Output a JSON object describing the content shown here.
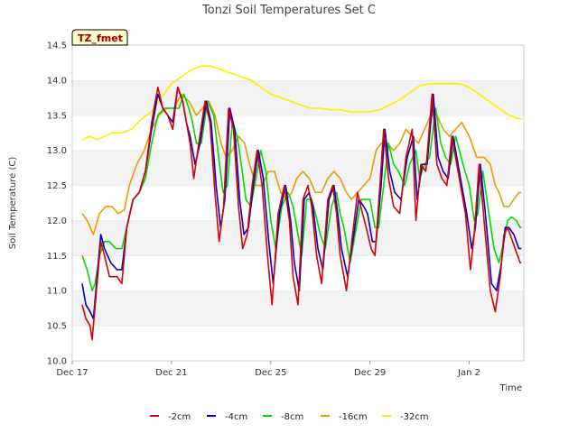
{
  "chart_data": {
    "type": "line",
    "title": "Tonzi Soil Temperatures Set C",
    "xlabel": "Time",
    "ylabel": "Soil Temperature (C)",
    "badge": "TZ_fmet",
    "ylim": [
      10.0,
      14.5
    ],
    "yticks": [
      10.0,
      10.5,
      11.0,
      11.5,
      12.0,
      12.5,
      13.0,
      13.5,
      14.0,
      14.5
    ],
    "xlim": [
      0,
      18.2
    ],
    "xticks": [
      {
        "value": 0,
        "label": "Dec 17"
      },
      {
        "value": 4,
        "label": "Dec 21"
      },
      {
        "value": 8,
        "label": "Dec 25"
      },
      {
        "value": 12,
        "label": "Dec 29"
      },
      {
        "value": 16,
        "label": "Jan 2"
      }
    ],
    "grid": true,
    "legend_position": "bottom",
    "series": [
      {
        "name": "-2cm",
        "color": "#dd0000",
        "x": [
          0.4,
          0.55,
          0.72,
          0.8,
          0.95,
          1.15,
          1.3,
          1.5,
          1.8,
          2.0,
          2.2,
          2.45,
          2.7,
          2.95,
          3.2,
          3.45,
          3.65,
          3.85,
          4.05,
          4.25,
          4.45,
          4.6,
          4.75,
          4.9,
          5.1,
          5.35,
          5.55,
          5.75,
          5.92,
          6.1,
          6.3,
          6.5,
          6.7,
          6.87,
          7.05,
          7.25,
          7.45,
          7.65,
          7.87,
          8.05,
          8.3,
          8.55,
          8.75,
          8.9,
          9.1,
          9.3,
          9.5,
          9.65,
          9.85,
          10.05,
          10.3,
          10.5,
          10.65,
          10.8,
          11.05,
          11.3,
          11.5,
          11.7,
          11.85,
          12.05,
          12.2,
          12.4,
          12.55,
          12.75,
          12.95,
          13.2,
          13.45,
          13.7,
          13.85,
          14.05,
          14.25,
          14.5,
          14.7,
          14.9,
          15.1,
          15.3,
          15.6,
          15.85,
          16.05,
          16.2,
          16.4,
          16.6,
          16.85,
          17.05,
          17.25,
          17.4,
          17.55,
          17.75,
          17.95,
          18.05,
          18.1
        ],
        "y": [
          10.8,
          10.6,
          10.5,
          10.3,
          10.9,
          11.7,
          11.5,
          11.2,
          11.2,
          11.1,
          11.9,
          12.3,
          12.4,
          12.7,
          13.4,
          13.9,
          13.6,
          13.5,
          13.3,
          13.9,
          13.7,
          13.4,
          13.1,
          12.6,
          13.1,
          13.7,
          13.4,
          12.4,
          11.7,
          12.2,
          13.6,
          13.3,
          12.2,
          11.6,
          11.8,
          12.5,
          13.0,
          12.5,
          11.5,
          10.8,
          12.1,
          12.5,
          12.0,
          11.2,
          10.8,
          12.3,
          12.5,
          12.2,
          11.5,
          11.1,
          12.3,
          12.5,
          12.1,
          11.5,
          11.0,
          11.8,
          12.4,
          12.1,
          11.9,
          11.6,
          11.5,
          12.5,
          13.3,
          12.6,
          12.2,
          12.1,
          12.9,
          13.3,
          12.0,
          12.8,
          12.7,
          13.8,
          12.8,
          12.6,
          12.5,
          13.2,
          12.6,
          12.1,
          11.3,
          11.8,
          12.8,
          12.0,
          11.0,
          10.7,
          11.2,
          11.8,
          11.9,
          11.7,
          11.5,
          11.4,
          11.4
        ]
      },
      {
        "name": "-4cm",
        "color": "#0000cc",
        "x": [
          0.4,
          0.55,
          0.72,
          0.85,
          1.0,
          1.15,
          1.3,
          1.55,
          1.8,
          2.0,
          2.2,
          2.45,
          2.7,
          2.95,
          3.2,
          3.45,
          3.65,
          3.85,
          4.05,
          4.25,
          4.45,
          4.6,
          4.75,
          4.95,
          5.15,
          5.4,
          5.6,
          5.8,
          5.98,
          6.15,
          6.35,
          6.55,
          6.75,
          6.92,
          7.1,
          7.3,
          7.5,
          7.7,
          7.92,
          8.1,
          8.35,
          8.6,
          8.8,
          8.95,
          9.15,
          9.35,
          9.55,
          9.7,
          9.9,
          10.1,
          10.35,
          10.55,
          10.7,
          10.85,
          11.1,
          11.35,
          11.55,
          11.75,
          11.9,
          12.1,
          12.25,
          12.45,
          12.6,
          12.8,
          13.0,
          13.25,
          13.5,
          13.75,
          13.9,
          14.1,
          14.3,
          14.55,
          14.75,
          14.95,
          15.15,
          15.35,
          15.65,
          15.9,
          16.1,
          16.25,
          16.45,
          16.65,
          16.9,
          17.1,
          17.3,
          17.45,
          17.6,
          17.8,
          18.0,
          18.1
        ],
        "y": [
          11.1,
          10.8,
          10.7,
          10.6,
          11.2,
          11.8,
          11.6,
          11.4,
          11.3,
          11.3,
          11.9,
          12.3,
          12.4,
          12.7,
          13.3,
          13.8,
          13.6,
          13.5,
          13.4,
          13.9,
          13.7,
          13.4,
          13.2,
          12.8,
          13.1,
          13.7,
          13.4,
          12.5,
          11.9,
          12.3,
          13.6,
          13.3,
          12.3,
          11.8,
          11.9,
          12.5,
          13.0,
          12.6,
          11.7,
          11.1,
          12.1,
          12.5,
          12.0,
          11.4,
          11.0,
          12.3,
          12.4,
          12.2,
          11.6,
          11.3,
          12.3,
          12.5,
          12.1,
          11.6,
          11.2,
          11.8,
          12.3,
          12.2,
          12.1,
          11.7,
          11.7,
          12.5,
          13.3,
          12.7,
          12.4,
          12.3,
          12.9,
          13.2,
          12.3,
          12.8,
          12.8,
          13.8,
          12.9,
          12.7,
          12.6,
          13.2,
          12.6,
          12.1,
          11.6,
          11.9,
          12.8,
          12.1,
          11.1,
          11.0,
          11.4,
          11.9,
          11.9,
          11.8,
          11.6,
          11.6
        ]
      },
      {
        "name": "-8cm",
        "color": "#00dd00",
        "x": [
          0.4,
          0.6,
          0.8,
          0.92,
          1.1,
          1.3,
          1.5,
          1.75,
          2.0,
          2.2,
          2.45,
          2.7,
          2.95,
          3.2,
          3.45,
          3.7,
          3.9,
          4.1,
          4.3,
          4.5,
          4.7,
          4.85,
          5.0,
          5.2,
          5.45,
          5.7,
          5.9,
          6.08,
          6.25,
          6.45,
          6.65,
          6.85,
          7.0,
          7.2,
          7.4,
          7.6,
          7.8,
          8.0,
          8.2,
          8.45,
          8.7,
          8.9,
          9.05,
          9.25,
          9.45,
          9.65,
          9.8,
          10.0,
          10.2,
          10.45,
          10.65,
          10.8,
          10.95,
          11.2,
          11.45,
          11.65,
          11.85,
          12.0,
          12.2,
          12.35,
          12.55,
          12.75,
          12.95,
          13.15,
          13.4,
          13.6,
          13.85,
          14.0,
          14.2,
          14.4,
          14.65,
          14.85,
          15.05,
          15.25,
          15.45,
          15.75,
          16.0,
          16.2,
          16.35,
          16.55,
          16.75,
          17.0,
          17.2,
          17.4,
          17.55,
          17.7,
          17.9,
          18.05,
          18.1
        ],
        "y": [
          11.5,
          11.3,
          11.0,
          11.1,
          11.5,
          11.7,
          11.7,
          11.6,
          11.6,
          11.9,
          12.3,
          12.4,
          12.6,
          13.1,
          13.5,
          13.6,
          13.6,
          13.6,
          13.6,
          13.8,
          13.6,
          13.4,
          13.1,
          13.1,
          13.7,
          13.5,
          12.9,
          12.4,
          12.5,
          13.4,
          13.2,
          12.7,
          12.3,
          12.2,
          12.6,
          13.0,
          12.7,
          12.0,
          11.6,
          12.2,
          12.4,
          12.2,
          11.9,
          11.5,
          12.3,
          12.3,
          12.1,
          11.8,
          11.6,
          12.2,
          12.4,
          12.1,
          11.9,
          11.4,
          11.9,
          12.3,
          12.3,
          12.3,
          11.9,
          11.9,
          12.5,
          13.1,
          12.8,
          12.7,
          12.5,
          12.8,
          13.0,
          12.6,
          12.8,
          12.9,
          13.6,
          13.1,
          12.9,
          12.8,
          13.2,
          12.8,
          12.5,
          12.0,
          12.1,
          12.7,
          12.2,
          11.6,
          11.4,
          11.7,
          12.0,
          12.05,
          12.0,
          11.9,
          11.9
        ]
      },
      {
        "name": "-16cm",
        "color": "#ee9900",
        "x": [
          0.4,
          0.6,
          0.85,
          1.1,
          1.35,
          1.6,
          1.85,
          2.1,
          2.3,
          2.6,
          2.9,
          3.2,
          3.5,
          3.8,
          4.1,
          4.4,
          4.7,
          5.0,
          5.25,
          5.5,
          5.75,
          6.0,
          6.2,
          6.45,
          6.7,
          6.95,
          7.15,
          7.4,
          7.65,
          7.9,
          8.15,
          8.4,
          8.65,
          8.85,
          9.05,
          9.3,
          9.55,
          9.8,
          10.05,
          10.3,
          10.55,
          10.8,
          11.05,
          11.25,
          11.5,
          11.75,
          12.0,
          12.25,
          12.45,
          12.7,
          12.95,
          13.2,
          13.45,
          13.7,
          13.95,
          14.2,
          14.45,
          14.7,
          14.95,
          15.2,
          15.45,
          15.7,
          16.0,
          16.3,
          16.6,
          16.85,
          17.05,
          17.2,
          17.4,
          17.6,
          17.8,
          18.0,
          18.1
        ],
        "y": [
          12.1,
          12.0,
          11.8,
          12.1,
          12.2,
          12.2,
          12.1,
          12.15,
          12.5,
          12.8,
          13.0,
          13.3,
          13.5,
          13.6,
          13.6,
          13.8,
          13.7,
          13.5,
          13.6,
          13.7,
          13.5,
          13.1,
          12.9,
          13.0,
          13.2,
          13.1,
          12.8,
          12.5,
          12.5,
          12.7,
          12.7,
          12.4,
          12.3,
          12.4,
          12.6,
          12.7,
          12.6,
          12.4,
          12.4,
          12.6,
          12.7,
          12.6,
          12.4,
          12.3,
          12.4,
          12.5,
          12.6,
          13.0,
          13.1,
          13.1,
          13.0,
          13.1,
          13.3,
          13.2,
          13.1,
          13.3,
          13.5,
          13.5,
          13.3,
          13.2,
          13.3,
          13.4,
          13.2,
          12.9,
          12.9,
          12.8,
          12.5,
          12.4,
          12.2,
          12.2,
          12.3,
          12.4,
          12.4
        ]
      },
      {
        "name": "-32cm",
        "color": "#ffee00",
        "x": [
          0.4,
          0.7,
          1.0,
          1.3,
          1.6,
          2.0,
          2.4,
          2.8,
          3.2,
          3.6,
          4.0,
          4.4,
          4.8,
          5.2,
          5.6,
          6.0,
          6.4,
          6.8,
          7.2,
          7.6,
          8.0,
          8.4,
          8.8,
          9.2,
          9.6,
          10.0,
          10.4,
          10.8,
          11.2,
          11.6,
          12.0,
          12.4,
          12.8,
          13.2,
          13.6,
          14.0,
          14.4,
          14.8,
          15.2,
          15.6,
          16.0,
          16.4,
          16.8,
          17.2,
          17.6,
          18.0,
          18.1
        ],
        "y": [
          13.15,
          13.2,
          13.15,
          13.2,
          13.25,
          13.25,
          13.3,
          13.45,
          13.55,
          13.75,
          13.95,
          14.05,
          14.15,
          14.2,
          14.2,
          14.15,
          14.1,
          14.05,
          14.0,
          13.9,
          13.8,
          13.75,
          13.7,
          13.65,
          13.6,
          13.6,
          13.58,
          13.58,
          13.55,
          13.55,
          13.55,
          13.58,
          13.65,
          13.72,
          13.82,
          13.92,
          13.95,
          13.95,
          13.95,
          13.95,
          13.9,
          13.8,
          13.7,
          13.6,
          13.5,
          13.45,
          13.45
        ]
      }
    ]
  }
}
